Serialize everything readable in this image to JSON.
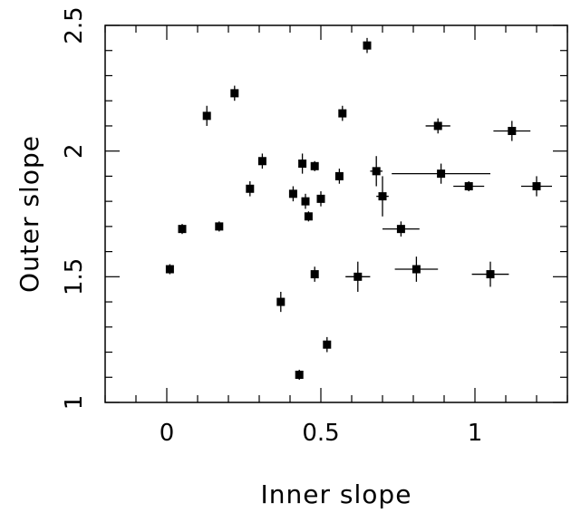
{
  "chart_data": {
    "type": "scatter",
    "xlabel": "Inner slope",
    "ylabel": "Outer slope",
    "xlim": [
      -0.2,
      1.3
    ],
    "ylim": [
      1.0,
      2.5
    ],
    "x_ticks": [
      0,
      0.5,
      1
    ],
    "x_tick_labels": [
      "0",
      "0.5",
      "1"
    ],
    "y_ticks": [
      1,
      1.5,
      2,
      2.5
    ],
    "y_tick_labels": [
      "1",
      "1.5",
      "2",
      "2.5"
    ],
    "grid": false,
    "points": [
      {
        "x": 0.01,
        "y": 1.53,
        "xerr": 0.0,
        "yerr": 0.02
      },
      {
        "x": 0.05,
        "y": 1.69,
        "xerr": 0.0,
        "yerr": 0.02
      },
      {
        "x": 0.13,
        "y": 2.14,
        "xerr": 0.0,
        "yerr": 0.04
      },
      {
        "x": 0.17,
        "y": 1.7,
        "xerr": 0.0,
        "yerr": 0.02
      },
      {
        "x": 0.22,
        "y": 2.23,
        "xerr": 0.0,
        "yerr": 0.03
      },
      {
        "x": 0.27,
        "y": 1.85,
        "xerr": 0.0,
        "yerr": 0.03
      },
      {
        "x": 0.31,
        "y": 1.96,
        "xerr": 0.0,
        "yerr": 0.03
      },
      {
        "x": 0.37,
        "y": 1.4,
        "xerr": 0.0,
        "yerr": 0.04
      },
      {
        "x": 0.41,
        "y": 1.83,
        "xerr": 0.0,
        "yerr": 0.03
      },
      {
        "x": 0.43,
        "y": 1.11,
        "xerr": 0.0,
        "yerr": 0.02
      },
      {
        "x": 0.44,
        "y": 1.95,
        "xerr": 0.0,
        "yerr": 0.04
      },
      {
        "x": 0.45,
        "y": 1.8,
        "xerr": 0.0,
        "yerr": 0.03
      },
      {
        "x": 0.46,
        "y": 1.74,
        "xerr": 0.0,
        "yerr": 0.02
      },
      {
        "x": 0.48,
        "y": 1.51,
        "xerr": 0.0,
        "yerr": 0.03
      },
      {
        "x": 0.48,
        "y": 1.94,
        "xerr": 0.0,
        "yerr": 0.02
      },
      {
        "x": 0.5,
        "y": 1.81,
        "xerr": 0.0,
        "yerr": 0.03
      },
      {
        "x": 0.52,
        "y": 1.23,
        "xerr": 0.0,
        "yerr": 0.03
      },
      {
        "x": 0.56,
        "y": 1.9,
        "xerr": 0.0,
        "yerr": 0.03
      },
      {
        "x": 0.57,
        "y": 2.15,
        "xerr": 0.0,
        "yerr": 0.03
      },
      {
        "x": 0.62,
        "y": 1.5,
        "xerr": 0.04,
        "yerr": 0.06
      },
      {
        "x": 0.65,
        "y": 2.42,
        "xerr": 0.0,
        "yerr": 0.03
      },
      {
        "x": 0.68,
        "y": 1.92,
        "xerr": 0.02,
        "yerr": 0.06
      },
      {
        "x": 0.7,
        "y": 1.82,
        "xerr": 0.02,
        "yerr": 0.08
      },
      {
        "x": 0.76,
        "y": 1.69,
        "xerr": 0.06,
        "yerr": 0.03
      },
      {
        "x": 0.81,
        "y": 1.53,
        "xerr": 0.07,
        "yerr": 0.05
      },
      {
        "x": 0.88,
        "y": 2.1,
        "xerr": 0.04,
        "yerr": 0.03
      },
      {
        "x": 0.89,
        "y": 1.91,
        "xerr": 0.16,
        "yerr": 0.04
      },
      {
        "x": 0.98,
        "y": 1.86,
        "xerr": 0.05,
        "yerr": 0.02
      },
      {
        "x": 1.05,
        "y": 1.51,
        "xerr": 0.06,
        "yerr": 0.05
      },
      {
        "x": 1.12,
        "y": 2.08,
        "xerr": 0.06,
        "yerr": 0.04
      },
      {
        "x": 1.2,
        "y": 1.86,
        "xerr": 0.05,
        "yerr": 0.04
      }
    ]
  }
}
